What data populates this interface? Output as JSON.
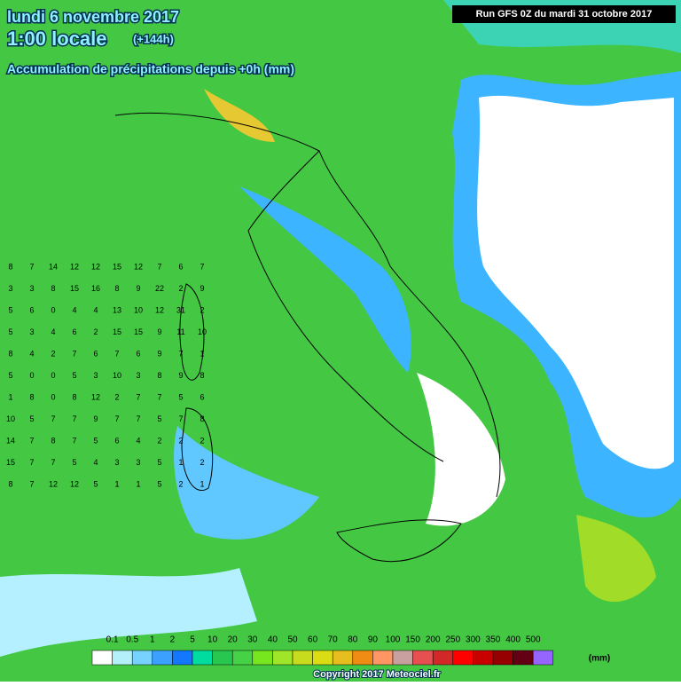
{
  "header": {
    "date": "lundi 6 novembre 2017",
    "time": "1:00 locale",
    "lead": "(+144h)",
    "subtitle": "Accumulation de précipitations depuis +0h (mm)",
    "run": "Run GFS 0Z du mardi 31 octobre 2017"
  },
  "grid": {
    "rows": [
      [
        8,
        7,
        14,
        12,
        12,
        15,
        12,
        7,
        6,
        7
      ],
      [
        3,
        3,
        8,
        15,
        16,
        8,
        9,
        22,
        2,
        9
      ],
      [
        5,
        6,
        0,
        4,
        4,
        13,
        10,
        12,
        31,
        2
      ],
      [
        5,
        3,
        4,
        6,
        2,
        15,
        15,
        9,
        11,
        10
      ],
      [
        8,
        4,
        2,
        7,
        6,
        7,
        6,
        9,
        7,
        1
      ],
      [
        5,
        0,
        0,
        5,
        3,
        10,
        3,
        8,
        9,
        8
      ],
      [
        1,
        8,
        0,
        8,
        12,
        2,
        7,
        7,
        5,
        6
      ],
      [
        10,
        5,
        7,
        7,
        9,
        7,
        7,
        5,
        7,
        8
      ],
      [
        14,
        7,
        8,
        7,
        5,
        6,
        4,
        2,
        2,
        2
      ],
      [
        15,
        7,
        7,
        5,
        4,
        3,
        3,
        5,
        1,
        2
      ],
      [
        8,
        7,
        12,
        12,
        5,
        1,
        1,
        5,
        2,
        1
      ]
    ]
  },
  "legend": {
    "unit": "(mm)",
    "labels": [
      "0.1",
      "0.5",
      "1",
      "2",
      "5",
      "10",
      "20",
      "30",
      "40",
      "50",
      "60",
      "70",
      "80",
      "90",
      "100",
      "150",
      "200",
      "250",
      "300",
      "350",
      "400",
      "500"
    ],
    "colors": [
      "#ffffff",
      "#b4f0fa",
      "#78d2ff",
      "#3ca0ff",
      "#1478ff",
      "#00dca0",
      "#28c850",
      "#46d246",
      "#78e61e",
      "#a0e628",
      "#c8dc1e",
      "#dcdc14",
      "#e6be1e",
      "#f08c14",
      "#ff9664",
      "#c8a0a0",
      "#e65050",
      "#d22828",
      "#ff0000",
      "#c80000",
      "#960000",
      "#640014",
      "#9664ff"
    ]
  },
  "footer": {
    "copyright": "Copyright 2017 Meteociel.fr"
  }
}
